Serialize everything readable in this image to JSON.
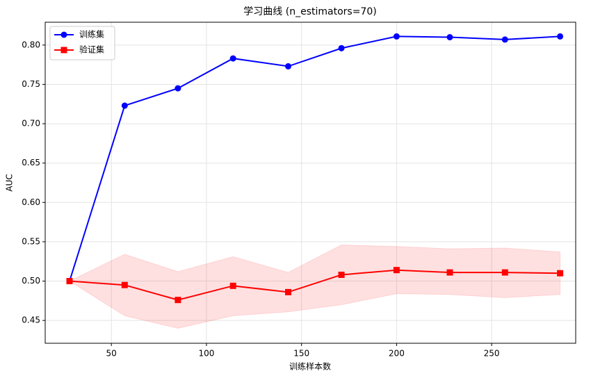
{
  "chart_data": {
    "type": "line",
    "title": "学习曲线 (n_estimators=70)",
    "x_label": "训练样本数",
    "y_label": "AUC",
    "x": [
      28,
      57,
      85,
      114,
      143,
      171,
      200,
      228,
      257,
      286
    ],
    "series": [
      {
        "name": "训练集",
        "color": "#0000ff",
        "marker": "circle",
        "values": [
          0.5,
          0.723,
          0.745,
          0.783,
          0.773,
          0.796,
          0.811,
          0.81,
          0.807,
          0.811
        ]
      },
      {
        "name": "验证集",
        "color": "#ff0000",
        "marker": "square",
        "values": [
          0.5,
          0.495,
          0.476,
          0.494,
          0.486,
          0.508,
          0.514,
          0.511,
          0.511,
          0.51
        ]
      }
    ],
    "fill_between": {
      "color": "#ff0000",
      "upper": [
        0.5,
        0.534,
        0.512,
        0.531,
        0.511,
        0.546,
        0.544,
        0.541,
        0.542,
        0.537
      ],
      "lower": [
        0.5,
        0.456,
        0.44,
        0.456,
        0.461,
        0.47,
        0.484,
        0.483,
        0.479,
        0.483
      ]
    },
    "xlim": [
      15.2,
      294.2
    ],
    "ylim": [
      0.421,
      0.829
    ],
    "xticks": [
      50,
      100,
      150,
      200,
      250
    ],
    "yticks": [
      0.45,
      {
        "value": 0.5,
        "label": "0.50"
      },
      0.55,
      {
        "value": 0.6,
        "label": "0.60"
      },
      0.65,
      {
        "value": 0.7,
        "label": "0.70"
      },
      0.75,
      {
        "value": 0.8,
        "label": "0.80"
      }
    ],
    "grid": true,
    "legend": "upper-left"
  }
}
